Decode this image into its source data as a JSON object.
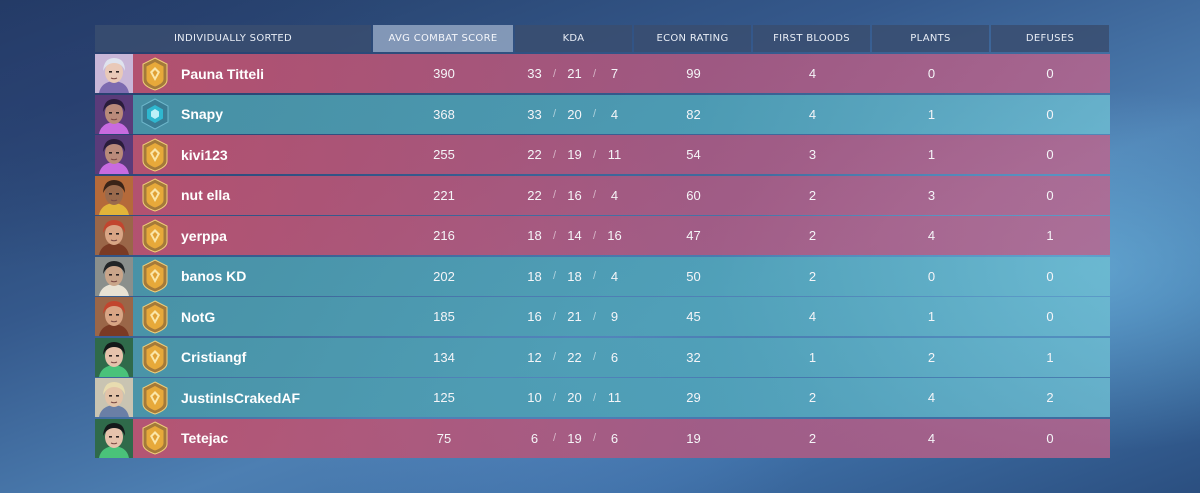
{
  "header": {
    "columns": [
      {
        "label": "INDIVIDUALLY SORTED",
        "key": "player",
        "active": false
      },
      {
        "label": "AVG COMBAT SCORE",
        "key": "acs",
        "active": true
      },
      {
        "label": "KDA",
        "key": "kda",
        "active": false
      },
      {
        "label": "ECON RATING",
        "key": "econ",
        "active": false
      },
      {
        "label": "FIRST BLOODS",
        "key": "fb",
        "active": false
      },
      {
        "label": "PLANTS",
        "key": "plants",
        "active": false
      },
      {
        "label": "DEFUSES",
        "key": "defuses",
        "active": false
      }
    ]
  },
  "colors": {
    "team_red": "#be526e",
    "team_blue": "#4a96a8",
    "self_marker": "#e8f28a",
    "rank_gold": "#e7a93a",
    "rank_teal": "#2fb7cf"
  },
  "players": [
    {
      "name": "Pauna Titteli",
      "team": "red",
      "self": false,
      "agent": "agent-sage-icon",
      "rank": "gold-rank-icon",
      "acs": "390",
      "kills": "33",
      "deaths": "21",
      "assists": "7",
      "econ": "99",
      "first_bloods": "4",
      "plants": "0",
      "defuses": "0"
    },
    {
      "name": "Snapy",
      "team": "blue",
      "self": true,
      "agent": "agent-reyna-icon",
      "rank": "unranked-rank-icon",
      "acs": "368",
      "kills": "33",
      "deaths": "20",
      "assists": "4",
      "econ": "82",
      "first_bloods": "4",
      "plants": "1",
      "defuses": "0"
    },
    {
      "name": "kivi123",
      "team": "red",
      "self": false,
      "agent": "agent-reyna-icon",
      "rank": "gold-rank-icon",
      "acs": "255",
      "kills": "22",
      "deaths": "19",
      "assists": "11",
      "econ": "54",
      "first_bloods": "3",
      "plants": "1",
      "defuses": "0"
    },
    {
      "name": "nut ella",
      "team": "red",
      "self": false,
      "agent": "agent-phoenix-icon",
      "rank": "gold-rank-icon",
      "acs": "221",
      "kills": "22",
      "deaths": "16",
      "assists": "4",
      "econ": "60",
      "first_bloods": "2",
      "plants": "3",
      "defuses": "0"
    },
    {
      "name": "yerppa",
      "team": "red",
      "self": false,
      "agent": "agent-brimstone-icon",
      "rank": "gold-rank-icon",
      "acs": "216",
      "kills": "18",
      "deaths": "14",
      "assists": "16",
      "econ": "47",
      "first_bloods": "2",
      "plants": "4",
      "defuses": "1"
    },
    {
      "name": "banos KD",
      "team": "blue",
      "self": false,
      "agent": "agent-cypher-icon",
      "rank": "gold-rank-icon",
      "acs": "202",
      "kills": "18",
      "deaths": "18",
      "assists": "4",
      "econ": "50",
      "first_bloods": "2",
      "plants": "0",
      "defuses": "0"
    },
    {
      "name": "NotG",
      "team": "blue",
      "self": false,
      "agent": "agent-brimstone-icon",
      "rank": "gold-rank-icon",
      "acs": "185",
      "kills": "16",
      "deaths": "21",
      "assists": "9",
      "econ": "45",
      "first_bloods": "4",
      "plants": "1",
      "defuses": "0"
    },
    {
      "name": "Cristiangf",
      "team": "blue",
      "self": false,
      "agent": "agent-viper-icon",
      "rank": "gold-rank-icon",
      "acs": "134",
      "kills": "12",
      "deaths": "22",
      "assists": "6",
      "econ": "32",
      "first_bloods": "1",
      "plants": "2",
      "defuses": "1"
    },
    {
      "name": "JustinIsCrakedAF",
      "team": "blue",
      "self": false,
      "agent": "agent-sova-icon",
      "rank": "gold-rank-icon",
      "acs": "125",
      "kills": "10",
      "deaths": "20",
      "assists": "11",
      "econ": "29",
      "first_bloods": "2",
      "plants": "4",
      "defuses": "2"
    },
    {
      "name": "Tetejac",
      "team": "red",
      "self": false,
      "agent": "agent-viper-icon",
      "rank": "gold-rank-icon",
      "acs": "75",
      "kills": "6",
      "deaths": "19",
      "assists": "6",
      "econ": "19",
      "first_bloods": "2",
      "plants": "4",
      "defuses": "0"
    }
  ]
}
